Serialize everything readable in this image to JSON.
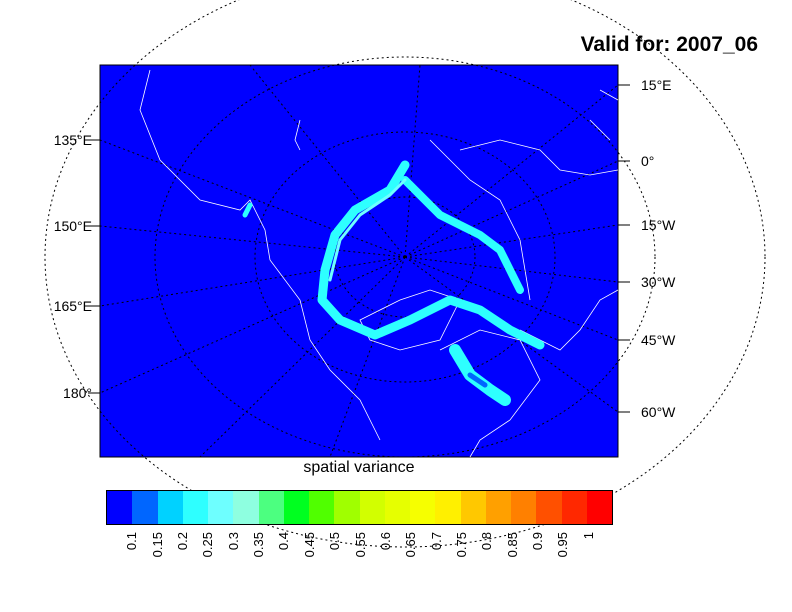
{
  "title": "Valid for: 2007_06",
  "xlabel": "spatial variance",
  "left_lon_labels": [
    "135°E",
    "150°E",
    "165°E",
    "180°"
  ],
  "right_lon_labels": [
    "15°E",
    "0°",
    "15°W",
    "30°W",
    "45°W",
    "60°W"
  ],
  "colors": {
    "ocean_background": "#0000ff",
    "coastline": "#ffffff",
    "graticule": "#000000",
    "ice_band": "#2effff"
  },
  "colorbar": {
    "labels": [
      "0.1",
      "0.15",
      "0.2",
      "0.25",
      "0.3",
      "0.35",
      "0.4",
      "0.45",
      "0.5",
      "0.55",
      "0.6",
      "0.65",
      "0.7",
      "0.75",
      "0.8",
      "0.85",
      "0.9",
      "0.95",
      "1"
    ],
    "colors": [
      "#0000ff",
      "#0066ff",
      "#00d2ff",
      "#2effff",
      "#6effff",
      "#8effe0",
      "#4cff80",
      "#00ff20",
      "#50ff00",
      "#a0ff00",
      "#d2ff00",
      "#e6ff00",
      "#f6ff00",
      "#fff000",
      "#ffc800",
      "#ffa000",
      "#ff8000",
      "#ff5000",
      "#ff2800",
      "#ff0000"
    ]
  }
}
